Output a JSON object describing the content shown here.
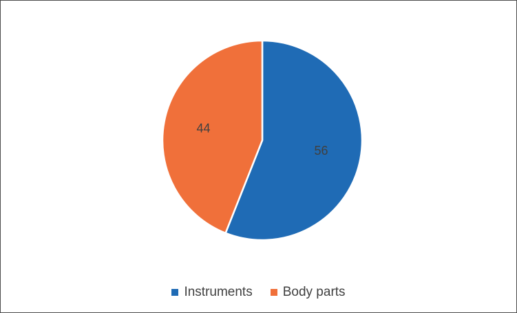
{
  "chart_data": {
    "type": "pie",
    "title": "",
    "slices": [
      {
        "label": "Instruments",
        "value": 56,
        "color": "#1f6bb5"
      },
      {
        "label": "Body parts",
        "value": 44,
        "color": "#f0703a"
      }
    ],
    "data_labels": [
      "56",
      "44"
    ],
    "legend": {
      "placement": "bottom",
      "entries": [
        "Instruments",
        "Body parts"
      ]
    },
    "start_angle_deg": 0,
    "direction": "clockwise"
  },
  "colors": {
    "instruments": "#1f6bb5",
    "body_parts": "#f0703a",
    "border": "#4a4a4a",
    "text": "#404040"
  }
}
